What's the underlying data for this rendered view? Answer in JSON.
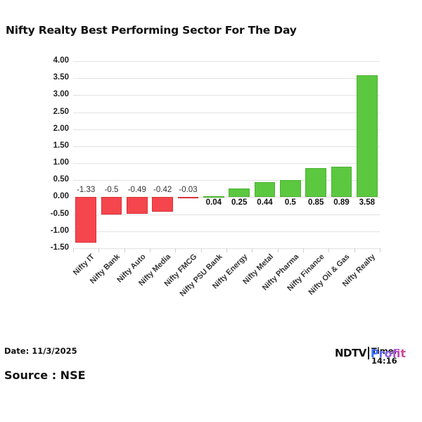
{
  "header": {
    "title": "Nifty Realty Best Performing Sector For The Day"
  },
  "footer": {
    "date": "Date: 11/3/2025",
    "source": "Source : NSE",
    "time": "Time: 14:16",
    "logo_left": "NDTV",
    "logo_right": "Profit"
  },
  "colors": {
    "positive": "#5cc840",
    "negative": "#f5454d",
    "grid": "#e2e2e2"
  },
  "chart_data": {
    "type": "bar",
    "title": "Nifty Realty Best Performing Sector For The Day",
    "xlabel": "",
    "ylabel": "",
    "ylim": [
      -1.5,
      4.0
    ],
    "yticks": [
      "4.00",
      "3.50",
      "3.00",
      "2.50",
      "2.00",
      "1.50",
      "1.00",
      "0.50",
      "0.00",
      "-0.50",
      "-1.00",
      "-1.50"
    ],
    "ytick_values": [
      4.0,
      3.5,
      3.0,
      2.5,
      2.0,
      1.5,
      1.0,
      0.5,
      0.0,
      -0.5,
      -1.0,
      -1.5
    ],
    "grid": true,
    "legend": null,
    "categories": [
      "Nifty IT",
      "Nifty Bank",
      "Nifty Auto",
      "Nifty Media",
      "Nifty FMCG",
      "Nifty PSU Bank",
      "Nifty Energy",
      "Nifty Metal",
      "Nifty Pharma",
      "Nifty Finance",
      "Nifty Oil & Gas",
      "Nifty Realty"
    ],
    "values": [
      -1.33,
      -0.5,
      -0.49,
      -0.42,
      -0.03,
      0.04,
      0.25,
      0.44,
      0.5,
      0.85,
      0.89,
      3.58
    ],
    "labels": [
      "-1.33",
      "-0.5",
      "-0.49",
      "-0.42",
      "-0.03",
      "0.04",
      "0.25",
      "0.44",
      "0.5",
      "0.85",
      "0.89",
      "3.58"
    ]
  }
}
